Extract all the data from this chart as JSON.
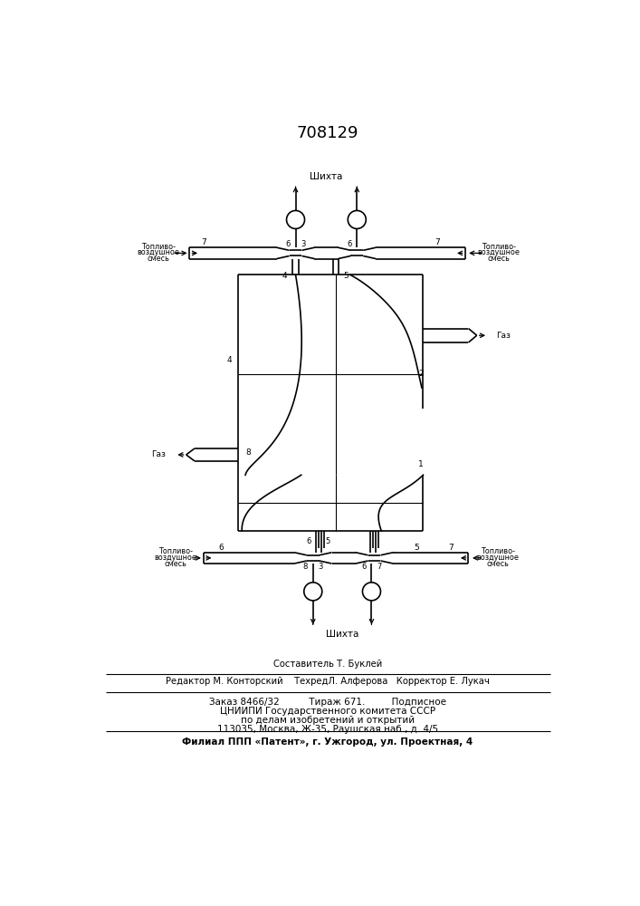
{
  "title": "708129",
  "line_color": "#000000",
  "text_color": "#000000",
  "shihta_top": "Шихта",
  "shihta_bottom": "Шихта",
  "gas_label": "Газ",
  "fuel_label_top": "Топливо-\nвоздушное\nсмесь",
  "fuel_label_bottom": "Топливо-\nвоздушное\nсмесь",
  "footer_composer": "Составитель Т. Буклей",
  "footer_editor": "Редактор М. Конторский",
  "footer_techred": "ТехредЛ. Алферова",
  "footer_corrector": "Корректор Е. Лукач",
  "footer_order": "Заказ 8466/32",
  "footer_tirazh": "Тираж 671.",
  "footer_podp": "Подписное",
  "footer_org": "ЦНИИПИ Государственного комитета СССР",
  "footer_dept": "по делам изобретений и открытий",
  "footer_addr": "113035, Москва, Ж-35, Раушская наб., д. 4/5",
  "footer_branch": "Филиал ППП «Патент», г. Ужгород, ул. Проектная, 4"
}
